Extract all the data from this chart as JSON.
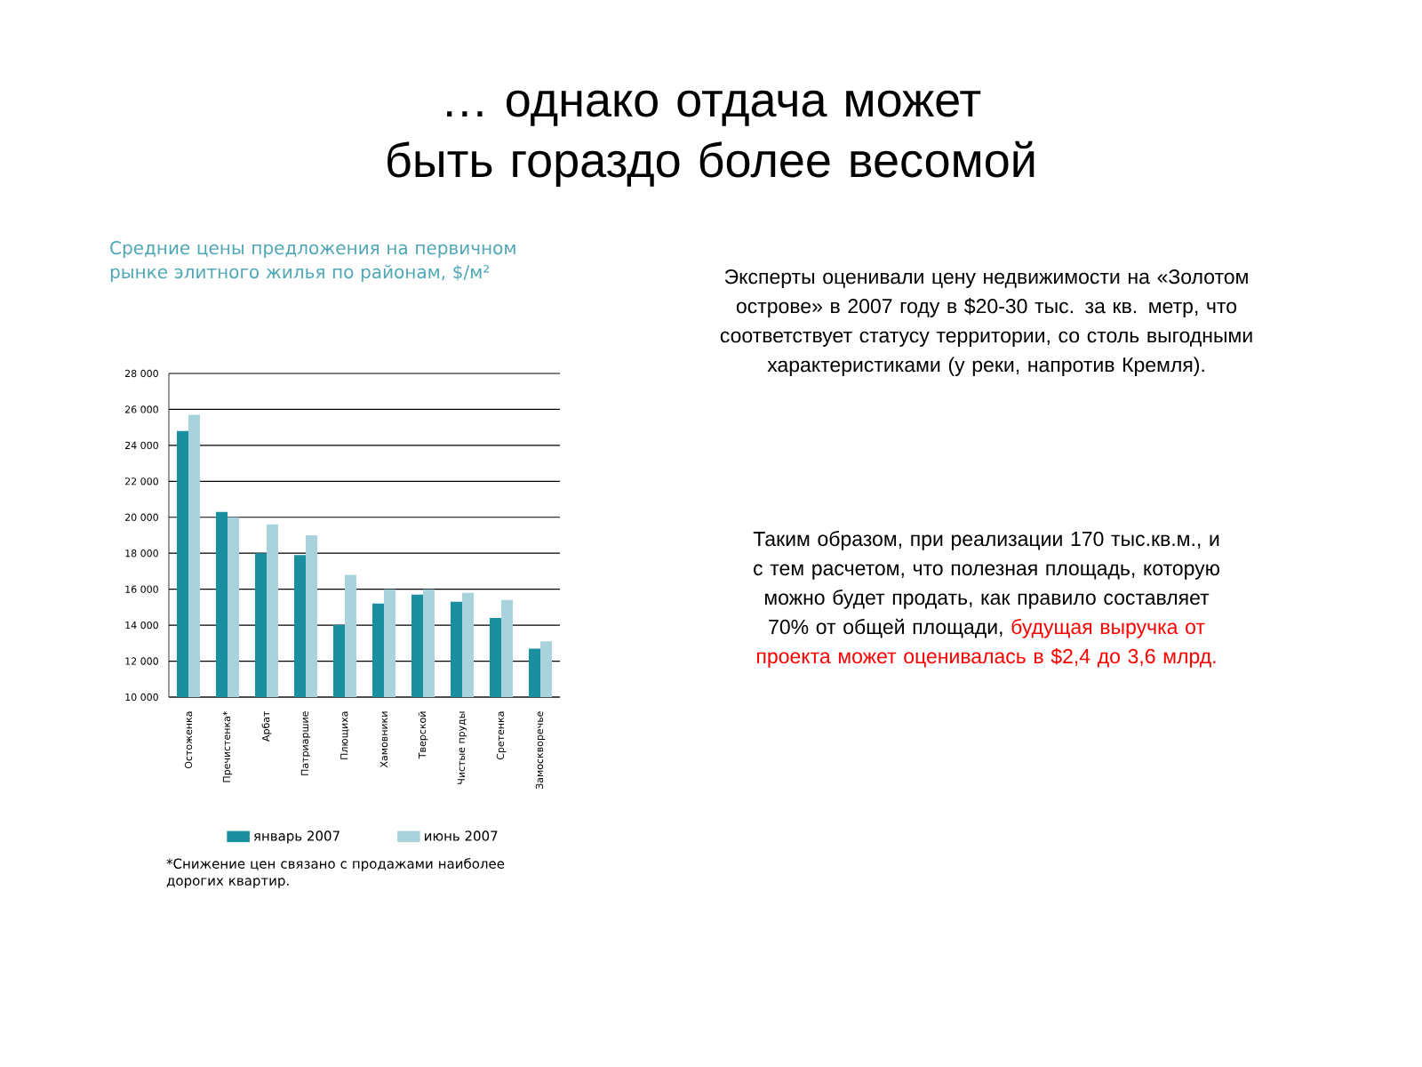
{
  "chart_data": {
    "type": "bar",
    "title": "… однако отдача может быть гораздо более весомой",
    "subtitle": "Средние цены предложения на первичном рынке элитного жилья по районам, $/м²",
    "categories": [
      "Остоженка",
      "Пречистенка*",
      "Арбат",
      "Патриаршие",
      "Плющиха",
      "Хамовники",
      "Тверской",
      "Чистые пруды",
      "Сретенка",
      "Замоскворечье"
    ],
    "series": [
      {
        "name": "январь 2007",
        "color": "#1a8fa0",
        "values": [
          24800,
          20300,
          18000,
          17900,
          14000,
          15200,
          15700,
          15300,
          14400,
          12700
        ]
      },
      {
        "name": "июнь 2007",
        "color": "#a9d3dc",
        "values": [
          25700,
          20000,
          19600,
          19000,
          16800,
          16000,
          16000,
          15800,
          15400,
          13100
        ]
      }
    ],
    "ylim": [
      10000,
      28000
    ],
    "yticks": [
      {
        "value": 10000,
        "label": "10 000"
      },
      {
        "value": 12000,
        "label": "12 000"
      },
      {
        "value": 14000,
        "label": "14 000"
      },
      {
        "value": 16000,
        "label": "16 000"
      },
      {
        "value": 18000,
        "label": "18 000"
      },
      {
        "value": 20000,
        "label": "20 000"
      },
      {
        "value": 22000,
        "label": "22 000"
      },
      {
        "value": 24000,
        "label": "24 000"
      },
      {
        "value": 26000,
        "label": "26 000"
      },
      {
        "value": 28000,
        "label": "28 000"
      }
    ],
    "grid": "y",
    "legend": "bottom",
    "annotations": [
      "Эксперты оценивали цену недвижимости на «Золотом острове» в 2007 году в $20-30 тыс. за кв. метр, что соответствует статусу территории, со столь выгодными характеристиками (у реки, напротив Кремля).",
      "Таким образом, при реализации 170 тыс.кв.м., и с тем расчетом, что полезная площадь, которую можно будет продать, как правило составляет 70% от общей площади,",
      "будущая выручка от проекта может оценивалась в $2,4 до 3,6 млрд.",
      "*Снижение цен связано с продажами наиболее дорогих квартир."
    ]
  }
}
